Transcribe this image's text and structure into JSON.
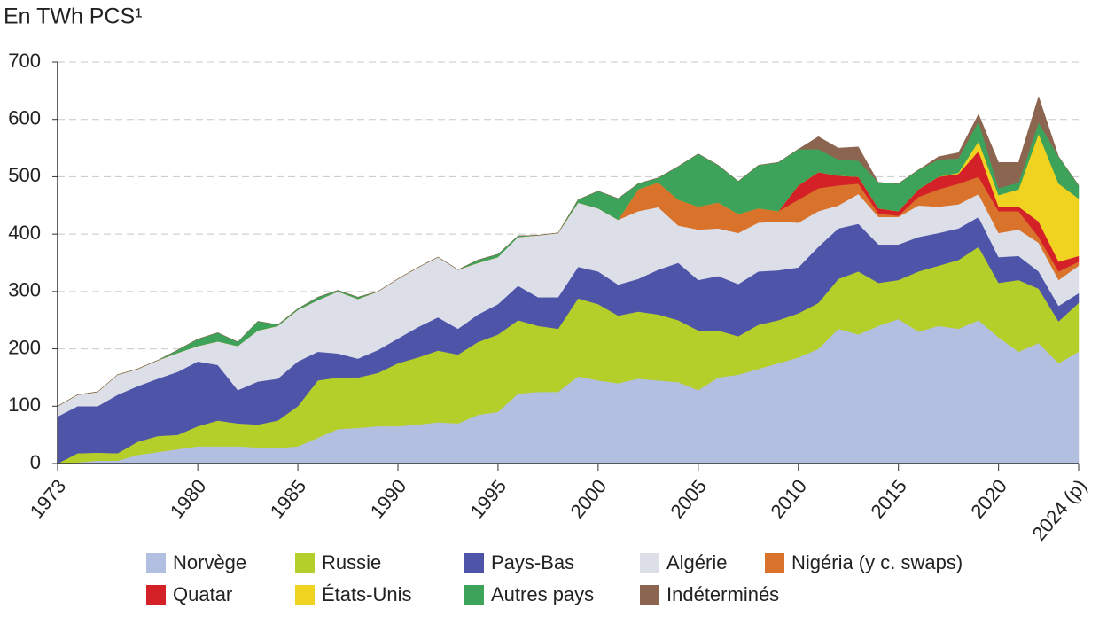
{
  "chart_data": {
    "type": "stacked-area",
    "title": "En TWh PCS¹",
    "x": [
      1973,
      1974,
      1975,
      1976,
      1977,
      1978,
      1979,
      1980,
      1981,
      1982,
      1983,
      1984,
      1985,
      1986,
      1987,
      1988,
      1989,
      1990,
      1991,
      1992,
      1993,
      1994,
      1995,
      1996,
      1997,
      1998,
      1999,
      2000,
      2001,
      2002,
      2003,
      2004,
      2005,
      2006,
      2007,
      2008,
      2009,
      2010,
      2011,
      2012,
      2013,
      2014,
      2015,
      2016,
      2017,
      2018,
      2019,
      2020,
      2021,
      2022,
      2023,
      2024
    ],
    "series": [
      {
        "name": "Norvège",
        "color": "#b3bfe0",
        "values": [
          0,
          2,
          5,
          5,
          15,
          20,
          25,
          30,
          30,
          30,
          28,
          27,
          30,
          45,
          60,
          62,
          65,
          65,
          68,
          72,
          70,
          85,
          90,
          122,
          125,
          125,
          152,
          145,
          140,
          148,
          145,
          142,
          128,
          150,
          155,
          165,
          175,
          185,
          200,
          235,
          225,
          240,
          252,
          230,
          240,
          235,
          250,
          220,
          195,
          210,
          175,
          195
        ]
      },
      {
        "name": "Russie",
        "color": "#b5cf2a",
        "values": [
          0,
          16,
          14,
          13,
          23,
          28,
          25,
          35,
          45,
          40,
          40,
          48,
          70,
          100,
          90,
          88,
          93,
          110,
          117,
          125,
          120,
          127,
          135,
          128,
          115,
          110,
          136,
          133,
          118,
          117,
          115,
          108,
          104,
          82,
          67,
          77,
          75,
          77,
          80,
          87,
          110,
          75,
          68,
          105,
          105,
          120,
          128,
          95,
          125,
          95,
          73,
          85
        ]
      },
      {
        "name": "Pays-Bas",
        "color": "#4e55a8",
        "values": [
          82,
          82,
          81,
          102,
          97,
          100,
          110,
          113,
          97,
          58,
          75,
          73,
          78,
          50,
          42,
          33,
          40,
          43,
          53,
          58,
          45,
          48,
          53,
          60,
          50,
          55,
          55,
          57,
          54,
          57,
          78,
          100,
          88,
          95,
          91,
          93,
          87,
          80,
          98,
          88,
          83,
          67,
          62,
          60,
          57,
          55,
          52,
          45,
          42,
          30,
          27,
          17
        ]
      },
      {
        "name": "Algérie",
        "color": "#dcdfe8",
        "values": [
          18,
          20,
          25,
          35,
          30,
          32,
          33,
          27,
          41,
          77,
          89,
          92,
          90,
          90,
          108,
          104,
          102,
          104,
          104,
          105,
          103,
          90,
          82,
          85,
          108,
          112,
          112,
          110,
          113,
          118,
          109,
          65,
          88,
          83,
          89,
          85,
          85,
          78,
          62,
          40,
          52,
          48,
          48,
          55,
          46,
          42,
          40,
          42,
          46,
          50,
          45,
          48
        ]
      },
      {
        "name": "Nigéria (y c. swaps)",
        "color": "#d9722a",
        "values": [
          0,
          0,
          0,
          0,
          0,
          0,
          0,
          0,
          0,
          0,
          0,
          0,
          0,
          0,
          0,
          0,
          0,
          0,
          0,
          0,
          0,
          0,
          0,
          0,
          0,
          0,
          0,
          0,
          0,
          38,
          43,
          45,
          40,
          45,
          33,
          25,
          18,
          40,
          40,
          35,
          18,
          6,
          2,
          15,
          30,
          36,
          30,
          38,
          32,
          10,
          15,
          7
        ]
      },
      {
        "name": "Quatar",
        "color": "#d42128",
        "values": [
          0,
          0,
          0,
          0,
          0,
          0,
          0,
          0,
          0,
          0,
          0,
          0,
          0,
          0,
          0,
          0,
          0,
          0,
          0,
          0,
          0,
          0,
          0,
          0,
          0,
          0,
          0,
          0,
          0,
          0,
          0,
          0,
          0,
          0,
          0,
          0,
          0,
          25,
          28,
          17,
          12,
          9,
          8,
          13,
          22,
          17,
          45,
          8,
          8,
          27,
          17,
          10
        ]
      },
      {
        "name": "États-Unis",
        "color": "#f0d321",
        "values": [
          0,
          0,
          0,
          0,
          0,
          0,
          0,
          0,
          0,
          0,
          0,
          0,
          0,
          0,
          0,
          0,
          0,
          0,
          0,
          0,
          0,
          0,
          0,
          0,
          0,
          0,
          0,
          0,
          0,
          0,
          0,
          0,
          0,
          0,
          0,
          0,
          0,
          0,
          0,
          0,
          0,
          0,
          0,
          0,
          0,
          2,
          17,
          20,
          30,
          153,
          136,
          100
        ]
      },
      {
        "name": "Autres pays",
        "color": "#3da35a",
        "values": [
          0,
          0,
          0,
          0,
          0,
          0,
          5,
          12,
          15,
          7,
          16,
          2,
          2,
          5,
          2,
          3,
          0,
          0,
          0,
          0,
          0,
          5,
          5,
          2,
          0,
          0,
          5,
          30,
          37,
          10,
          8,
          58,
          92,
          65,
          57,
          75,
          85,
          63,
          40,
          28,
          28,
          45,
          48,
          34,
          30,
          25,
          35,
          12,
          12,
          20,
          47,
          23
        ]
      },
      {
        "name": "Indéterminés",
        "color": "#8c6550",
        "values": [
          0,
          0,
          0,
          0,
          0,
          0,
          0,
          0,
          0,
          0,
          0,
          0,
          0,
          0,
          0,
          0,
          0,
          0,
          0,
          0,
          0,
          0,
          0,
          0,
          0,
          0,
          0,
          0,
          0,
          0,
          0,
          0,
          0,
          0,
          0,
          0,
          0,
          0,
          22,
          20,
          24,
          0,
          0,
          0,
          5,
          10,
          12,
          45,
          35,
          45,
          0,
          0
        ]
      }
    ],
    "xlim": [
      1973,
      2024
    ],
    "xticks": [
      1973,
      1980,
      1985,
      1990,
      1995,
      2000,
      2005,
      2010,
      2015,
      2020,
      {
        "value": 2024,
        "label": "2024 (p)"
      }
    ],
    "ylim": [
      0,
      700
    ],
    "yticks": [
      0,
      100,
      200,
      300,
      400,
      500,
      600,
      700
    ],
    "grid": true
  }
}
